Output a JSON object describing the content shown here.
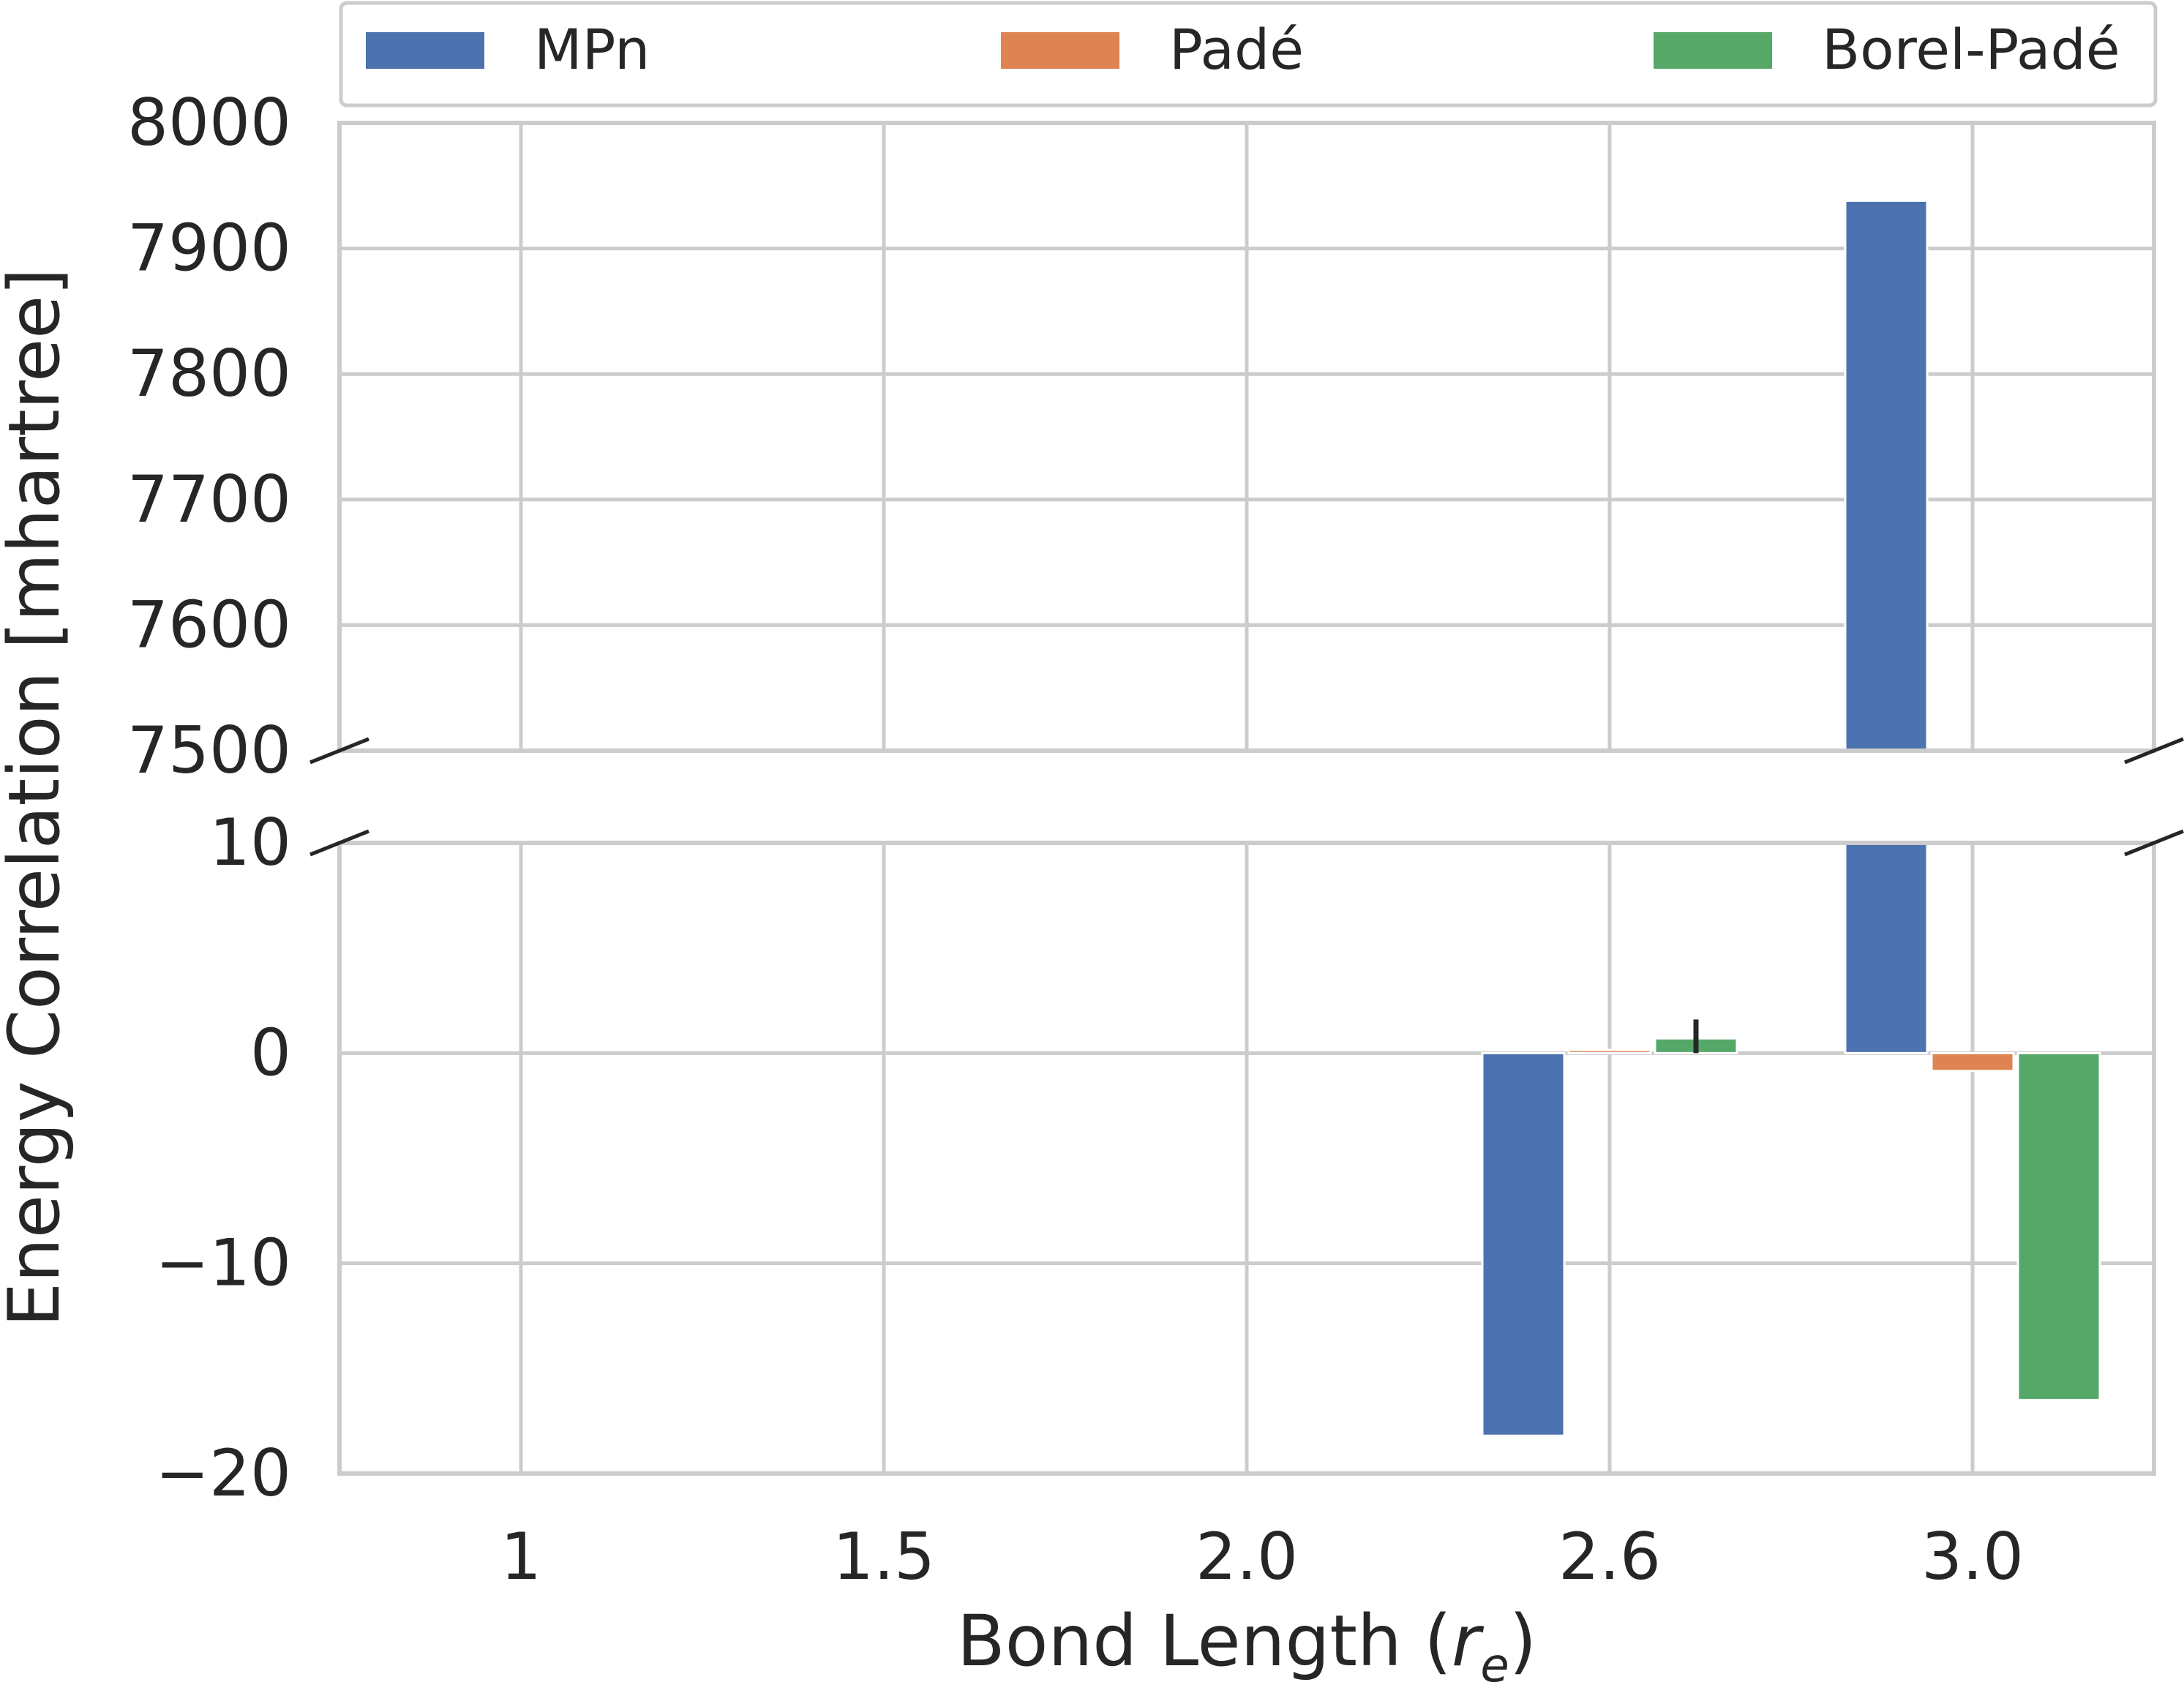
{
  "chart_data": {
    "type": "bar",
    "xlabel": "Bond Length",
    "xlabel_symbol": "r",
    "xlabel_subscript": "e",
    "ylabel": "Energy Correlation [mhartree]",
    "categories": [
      "1",
      "1.5",
      "2.0",
      "2.6",
      "3.0"
    ],
    "series": [
      {
        "name": "MPn",
        "color": "#4c72b0",
        "values": [
          0.0,
          0.0,
          0.0,
          -18.2,
          7938
        ]
      },
      {
        "name": "Padé",
        "color": "#dd8452",
        "values": [
          0.0,
          0.0,
          0.0,
          0.15,
          -0.85
        ]
      },
      {
        "name": "Borel-Padé",
        "color": "#55a868",
        "values": [
          0.0,
          0.0,
          0.0,
          0.7,
          -16.5
        ]
      }
    ],
    "error_bars": [
      {
        "series": "Borel-Padé",
        "category": "2.6",
        "low": 0.0,
        "high": 1.6
      }
    ],
    "broken_axis": true,
    "upper_panel": {
      "ylim": [
        7500,
        8000
      ],
      "yticks": [
        "7500",
        "7600",
        "7700",
        "7800",
        "7900",
        "8000"
      ]
    },
    "lower_panel": {
      "ylim": [
        -20,
        10
      ],
      "yticks": [
        "−20",
        "−10",
        "0",
        "10"
      ]
    },
    "grid": true,
    "legend_placement": "top"
  }
}
